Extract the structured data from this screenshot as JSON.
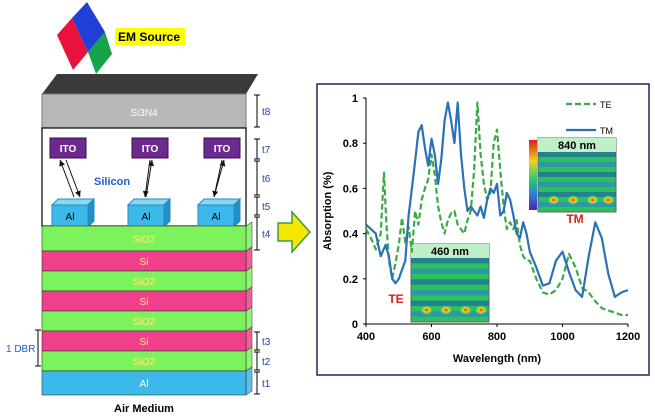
{
  "source": {
    "label": "EM Source",
    "colors": [
      "#e8123c",
      "#1f3fd6",
      "#16a34a"
    ]
  },
  "structure": {
    "top_layer": "Si3N4",
    "ito_label": "ITO",
    "silicon_label": "Silicon",
    "al_label": "Al",
    "layers": [
      "SiO2",
      "Si",
      "SiO2",
      "Si",
      "SiO2",
      "Si",
      "SiO2",
      "Al"
    ],
    "air_medium": "Air Medium",
    "dbr_label": "1 DBR",
    "thicknesses": [
      "t8",
      "t7",
      "t6",
      "t5",
      "t4",
      "t3",
      "t2",
      "t1"
    ],
    "colors": {
      "sio2": "#7cf25c",
      "si": "#f0408c",
      "al": "#3cb8ea",
      "ito": "#6d2a8e",
      "si3n4": "#b8b8b8",
      "top": "#3a3a3a"
    }
  },
  "arrow_color": "#f5e600",
  "chart_data": {
    "type": "line",
    "xlabel": "Wavelength (nm)",
    "ylabel": "Absorption (%)",
    "xlim": [
      400,
      1200
    ],
    "ylim": [
      0,
      1
    ],
    "xticks": [
      "400",
      "600",
      "800",
      "1000",
      "1200"
    ],
    "yticks": [
      "0",
      "0.2",
      "0.4",
      "0.6",
      "0.8",
      "1"
    ],
    "legend_position": "top-right",
    "series": [
      {
        "name": "TE",
        "style": "dashed",
        "color": "#3aaa46",
        "x": [
          400,
          415,
          430,
          445,
          455,
          462,
          470,
          480,
          490,
          500,
          510,
          520,
          530,
          540,
          550,
          560,
          570,
          580,
          590,
          600,
          610,
          620,
          630,
          640,
          650,
          660,
          670,
          680,
          690,
          700,
          710,
          720,
          730,
          740,
          750,
          760,
          770,
          780,
          790,
          800,
          810,
          820,
          830,
          840,
          850,
          860,
          870,
          880,
          890,
          900,
          920,
          940,
          960,
          980,
          1000,
          1020,
          1040,
          1060,
          1080,
          1100,
          1120,
          1140,
          1160,
          1180,
          1200
        ],
        "y": [
          0.42,
          0.38,
          0.33,
          0.4,
          0.67,
          0.45,
          0.28,
          0.2,
          0.27,
          0.35,
          0.47,
          0.36,
          0.43,
          0.32,
          0.5,
          0.44,
          0.55,
          0.6,
          0.64,
          0.75,
          0.66,
          0.52,
          0.45,
          0.4,
          0.46,
          0.49,
          0.5,
          0.44,
          0.42,
          0.4,
          0.46,
          0.5,
          0.68,
          0.98,
          0.75,
          0.62,
          0.55,
          0.58,
          0.8,
          0.86,
          0.68,
          0.52,
          0.42,
          0.45,
          0.42,
          0.46,
          0.35,
          0.3,
          0.28,
          0.28,
          0.2,
          0.14,
          0.13,
          0.15,
          0.2,
          0.31,
          0.25,
          0.16,
          0.14,
          0.1,
          0.07,
          0.06,
          0.05,
          0.04,
          0.04
        ]
      },
      {
        "name": "TM",
        "style": "solid",
        "color": "#2a72b5",
        "x": [
          400,
          415,
          430,
          445,
          460,
          470,
          480,
          490,
          500,
          510,
          520,
          530,
          540,
          550,
          560,
          570,
          580,
          590,
          600,
          610,
          620,
          630,
          640,
          650,
          660,
          670,
          680,
          690,
          700,
          710,
          720,
          730,
          740,
          750,
          760,
          770,
          780,
          790,
          800,
          810,
          820,
          830,
          840,
          850,
          860,
          870,
          880,
          890,
          900,
          920,
          940,
          960,
          980,
          1000,
          1020,
          1040,
          1060,
          1080,
          1100,
          1120,
          1140,
          1160,
          1180,
          1200
        ],
        "y": [
          0.44,
          0.42,
          0.4,
          0.3,
          0.35,
          0.3,
          0.2,
          0.18,
          0.2,
          0.24,
          0.28,
          0.48,
          0.6,
          0.72,
          0.85,
          0.88,
          0.78,
          0.7,
          0.82,
          0.75,
          0.62,
          0.73,
          0.9,
          0.98,
          0.9,
          0.8,
          0.98,
          0.75,
          0.6,
          0.5,
          0.52,
          0.5,
          0.48,
          0.52,
          0.47,
          0.55,
          0.6,
          0.58,
          0.62,
          0.48,
          0.5,
          0.58,
          0.55,
          0.48,
          0.4,
          0.38,
          0.45,
          0.4,
          0.32,
          0.25,
          0.17,
          0.18,
          0.28,
          0.32,
          0.23,
          0.15,
          0.12,
          0.3,
          0.45,
          0.38,
          0.22,
          0.12,
          0.14,
          0.15
        ]
      }
    ],
    "insets": [
      {
        "title": "840 nm",
        "mode": "TM"
      },
      {
        "title": "460 nm",
        "mode": "TE"
      }
    ]
  }
}
